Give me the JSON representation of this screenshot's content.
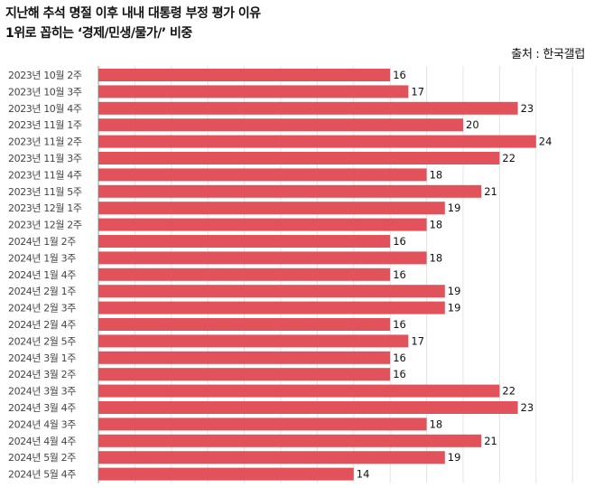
{
  "header": {
    "title_line1": "지난해 추석 명절 이후 내내 대통령 부정 평가 이유",
    "title_line2": "1위로 꼽히는 ‘경제/민생/물가/’ 비중",
    "source": "출처 : 한국갤럽"
  },
  "colors": {
    "bar": "#e2525a",
    "grid": "#e4e4e4",
    "axis": "#999999"
  },
  "chart_data": {
    "type": "bar",
    "orientation": "horizontal",
    "title": "지난해 추석 명절 이후 내내 대통령 부정 평가 이유 1위로 꼽히는 ‘경제/민생/물가/’ 비중",
    "categories": [
      "2023년 10월 2주",
      "2023년 10월 3주",
      "2023년 10월 4주",
      "2023년 11월 1주",
      "2023년 11월 2주",
      "2023년 11월 3주",
      "2023년 11월 4주",
      "2023년 11월 5주",
      "2023년 12월 1주",
      "2023년 12월 2주",
      "2024년 1월 2주",
      "2024년 1월 3주",
      "2024년 1월 4주",
      "2024년 2월 1주",
      "2024년 2월 3주",
      "2024년 2월 4주",
      "2024년 2월 5주",
      "2024년 3월 1주",
      "2024년 3월 2주",
      "2024년 3월 3주",
      "2024년 3월 4주",
      "2024년 4월 3주",
      "2024년 4월 4주",
      "2024년 5월 2주",
      "2024년 5월 4주"
    ],
    "values": [
      16,
      17,
      23,
      20,
      24,
      22,
      18,
      21,
      19,
      18,
      16,
      18,
      16,
      19,
      19,
      16,
      17,
      16,
      16,
      22,
      23,
      18,
      21,
      19,
      14
    ],
    "xlim": [
      0,
      26
    ],
    "grid": true,
    "data_labels": true
  }
}
